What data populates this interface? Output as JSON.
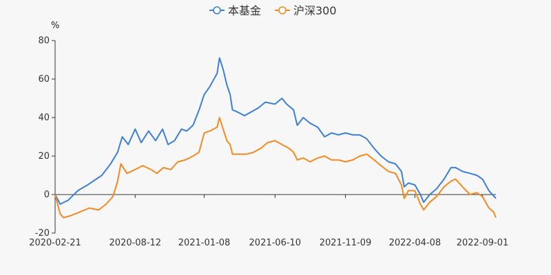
{
  "chart_data": {
    "type": "line",
    "ylabel": "%",
    "ylim": [
      -20,
      80
    ],
    "yticks": [
      -20,
      0,
      20,
      40,
      60,
      80
    ],
    "xticks": [
      "2020-02-21",
      "2020-08-12",
      "2021-01-08",
      "2021-06-10",
      "2021-11-09",
      "2022-04-08",
      "2022-09-01"
    ],
    "x_range": [
      "2020-02-21",
      "2022-09-30"
    ],
    "grid": false,
    "legend_position": "top-center",
    "colors": {
      "series1": "#3a7fd5",
      "series2": "#f3891f",
      "axis": "#333333"
    },
    "series": [
      {
        "name": "本基金",
        "points": [
          [
            "2020-02-21",
            0
          ],
          [
            "2020-03-03",
            -5
          ],
          [
            "2020-03-20",
            -3
          ],
          [
            "2020-04-10",
            2
          ],
          [
            "2020-05-01",
            5
          ],
          [
            "2020-06-01",
            10
          ],
          [
            "2020-06-20",
            16
          ],
          [
            "2020-07-05",
            22
          ],
          [
            "2020-07-15",
            30
          ],
          [
            "2020-07-28",
            26
          ],
          [
            "2020-08-12",
            34
          ],
          [
            "2020-08-25",
            27
          ],
          [
            "2020-09-10",
            33
          ],
          [
            "2020-09-25",
            28
          ],
          [
            "2020-10-10",
            34
          ],
          [
            "2020-10-22",
            26
          ],
          [
            "2020-11-05",
            28
          ],
          [
            "2020-11-20",
            34
          ],
          [
            "2020-12-01",
            33
          ],
          [
            "2020-12-15",
            36
          ],
          [
            "2020-12-28",
            44
          ],
          [
            "2021-01-08",
            52
          ],
          [
            "2021-01-20",
            56
          ],
          [
            "2021-02-05",
            63
          ],
          [
            "2021-02-10",
            71
          ],
          [
            "2021-02-18",
            65
          ],
          [
            "2021-02-26",
            57
          ],
          [
            "2021-03-05",
            52
          ],
          [
            "2021-03-10",
            44
          ],
          [
            "2021-03-20",
            43
          ],
          [
            "2021-04-05",
            41
          ],
          [
            "2021-04-20",
            43
          ],
          [
            "2021-05-05",
            45
          ],
          [
            "2021-05-20",
            48
          ],
          [
            "2021-06-10",
            47
          ],
          [
            "2021-06-25",
            50
          ],
          [
            "2021-07-05",
            47
          ],
          [
            "2021-07-20",
            44
          ],
          [
            "2021-07-28",
            36
          ],
          [
            "2021-08-10",
            40
          ],
          [
            "2021-08-25",
            37
          ],
          [
            "2021-09-10",
            35
          ],
          [
            "2021-09-25",
            30
          ],
          [
            "2021-10-10",
            32
          ],
          [
            "2021-10-25",
            31
          ],
          [
            "2021-11-09",
            32
          ],
          [
            "2021-11-25",
            31
          ],
          [
            "2021-12-10",
            31
          ],
          [
            "2021-12-25",
            29
          ],
          [
            "2022-01-10",
            24
          ],
          [
            "2022-01-25",
            20
          ],
          [
            "2022-02-10",
            17
          ],
          [
            "2022-02-25",
            16
          ],
          [
            "2022-03-10",
            12
          ],
          [
            "2022-03-16",
            4
          ],
          [
            "2022-03-25",
            6
          ],
          [
            "2022-04-08",
            5
          ],
          [
            "2022-04-20",
            0
          ],
          [
            "2022-04-27",
            -4
          ],
          [
            "2022-05-10",
            0
          ],
          [
            "2022-05-25",
            3
          ],
          [
            "2022-06-10",
            8
          ],
          [
            "2022-06-25",
            14
          ],
          [
            "2022-07-05",
            14
          ],
          [
            "2022-07-20",
            12
          ],
          [
            "2022-08-05",
            11
          ],
          [
            "2022-08-20",
            10
          ],
          [
            "2022-09-01",
            8
          ],
          [
            "2022-09-15",
            2
          ],
          [
            "2022-09-30",
            -2
          ]
        ]
      },
      {
        "name": "沪深300",
        "points": [
          [
            "2020-02-21",
            0
          ],
          [
            "2020-03-03",
            -10
          ],
          [
            "2020-03-10",
            -12
          ],
          [
            "2020-03-25",
            -11
          ],
          [
            "2020-04-15",
            -9
          ],
          [
            "2020-05-05",
            -7
          ],
          [
            "2020-05-25",
            -8
          ],
          [
            "2020-06-10",
            -5
          ],
          [
            "2020-06-25",
            -1
          ],
          [
            "2020-07-05",
            7
          ],
          [
            "2020-07-12",
            16
          ],
          [
            "2020-07-25",
            11
          ],
          [
            "2020-08-12",
            13
          ],
          [
            "2020-08-28",
            15
          ],
          [
            "2020-09-15",
            13
          ],
          [
            "2020-09-28",
            11
          ],
          [
            "2020-10-12",
            14
          ],
          [
            "2020-10-28",
            13
          ],
          [
            "2020-11-12",
            17
          ],
          [
            "2020-11-28",
            18
          ],
          [
            "2020-12-15",
            20
          ],
          [
            "2020-12-28",
            22
          ],
          [
            "2021-01-08",
            32
          ],
          [
            "2021-01-20",
            33
          ],
          [
            "2021-02-05",
            35
          ],
          [
            "2021-02-10",
            40
          ],
          [
            "2021-02-18",
            34
          ],
          [
            "2021-02-26",
            28
          ],
          [
            "2021-03-05",
            26
          ],
          [
            "2021-03-10",
            21
          ],
          [
            "2021-03-25",
            21
          ],
          [
            "2021-04-10",
            21
          ],
          [
            "2021-04-25",
            22
          ],
          [
            "2021-05-10",
            24
          ],
          [
            "2021-05-25",
            27
          ],
          [
            "2021-06-10",
            28
          ],
          [
            "2021-06-25",
            26
          ],
          [
            "2021-07-10",
            24
          ],
          [
            "2021-07-20",
            22
          ],
          [
            "2021-07-28",
            18
          ],
          [
            "2021-08-10",
            19
          ],
          [
            "2021-08-25",
            17
          ],
          [
            "2021-09-10",
            19
          ],
          [
            "2021-09-25",
            20
          ],
          [
            "2021-10-10",
            18
          ],
          [
            "2021-10-25",
            18
          ],
          [
            "2021-11-09",
            17
          ],
          [
            "2021-11-25",
            18
          ],
          [
            "2021-12-10",
            20
          ],
          [
            "2021-12-25",
            21
          ],
          [
            "2022-01-10",
            18
          ],
          [
            "2022-01-25",
            15
          ],
          [
            "2022-02-10",
            12
          ],
          [
            "2022-02-25",
            11
          ],
          [
            "2022-03-10",
            5
          ],
          [
            "2022-03-16",
            -2
          ],
          [
            "2022-03-25",
            2
          ],
          [
            "2022-04-08",
            2
          ],
          [
            "2022-04-20",
            -5
          ],
          [
            "2022-04-27",
            -8
          ],
          [
            "2022-05-10",
            -4
          ],
          [
            "2022-05-25",
            -1
          ],
          [
            "2022-06-10",
            4
          ],
          [
            "2022-06-25",
            7
          ],
          [
            "2022-07-05",
            8
          ],
          [
            "2022-07-20",
            4
          ],
          [
            "2022-08-05",
            0
          ],
          [
            "2022-08-20",
            1
          ],
          [
            "2022-09-01",
            -1
          ],
          [
            "2022-09-15",
            -7
          ],
          [
            "2022-09-25",
            -9
          ],
          [
            "2022-09-30",
            -12
          ]
        ]
      }
    ]
  }
}
